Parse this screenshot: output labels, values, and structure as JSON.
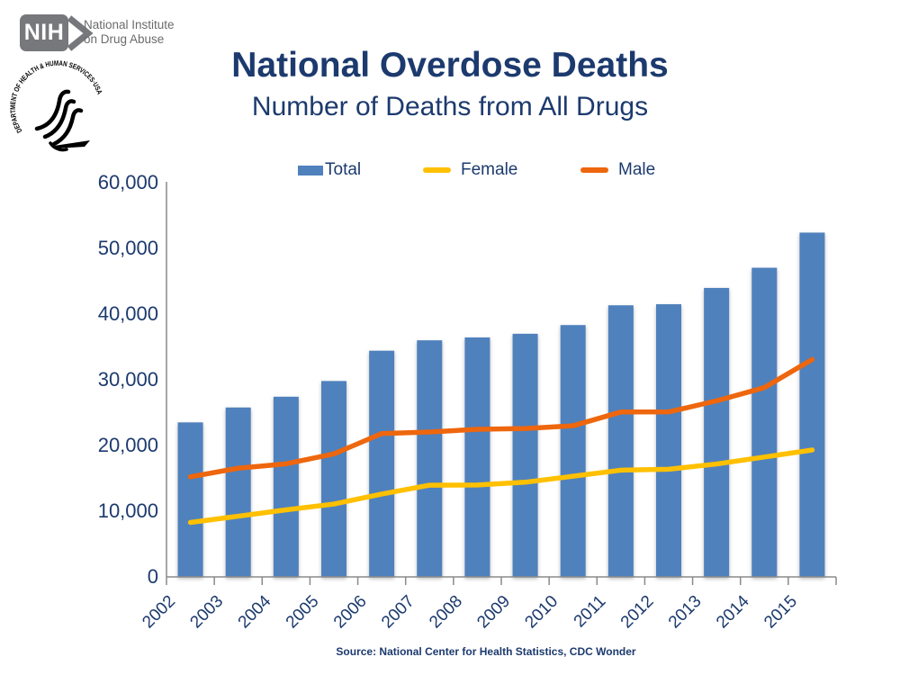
{
  "branding": {
    "nih_logo_text": "NIH",
    "institute_line1": "National Institute",
    "institute_line2": "on Drug Abuse",
    "hhs_seal_text": "DEPARTMENT OF HEALTH & HUMAN SERVICES·USA"
  },
  "title": "National Overdose Deaths",
  "subtitle": "Number of Deaths from All Drugs",
  "legend": [
    {
      "label": "Total",
      "swatch": "rect",
      "color": "#4F81BD"
    },
    {
      "label": "Female",
      "swatch": "line",
      "color": "#FFC000"
    },
    {
      "label": "Male",
      "swatch": "line",
      "color": "#EE660D"
    }
  ],
  "source": "Source: National Center for Health Statistics, CDC Wonder",
  "colors": {
    "navy_text": "#1C3A6E",
    "bar_blue": "#4F81BD",
    "female_yellow": "#FFC000",
    "male_orange": "#EE660D",
    "axis_gray": "#8A8A8A",
    "logo_gray": "#77787B"
  },
  "chart_data": {
    "type": "bar",
    "title": "National Overdose Deaths",
    "subtitle": "Number of Deaths from All Drugs",
    "categories": [
      "2002",
      "2003",
      "2004",
      "2005",
      "2006",
      "2007",
      "2008",
      "2009",
      "2010",
      "2011",
      "2012",
      "2013",
      "2014",
      "2015"
    ],
    "series": [
      {
        "name": "Total",
        "type": "bar",
        "color": "#4F81BD",
        "values": [
          23518,
          25785,
          27424,
          29813,
          34425,
          36010,
          36450,
          37004,
          38329,
          41340,
          41502,
          43982,
          47055,
          52404
        ]
      },
      {
        "name": "Female",
        "type": "line",
        "color": "#FFC000",
        "values": [
          8291,
          9238,
          10210,
          11089,
          12611,
          13961,
          13982,
          14411,
          15323,
          16244,
          16390,
          17183,
          18243,
          19313
        ]
      },
      {
        "name": "Male",
        "type": "line",
        "color": "#EE660D",
        "values": [
          15227,
          16547,
          17214,
          18724,
          21814,
          22049,
          22468,
          22593,
          23006,
          25096,
          25112,
          26799,
          28812,
          33091
        ]
      }
    ],
    "xlabel": "",
    "ylabel": "",
    "ylim": [
      0,
      60000
    ],
    "ytick_step": 10000,
    "ytick_labels": [
      "0",
      "10,000",
      "20,000",
      "30,000",
      "40,000",
      "50,000",
      "60,000"
    ],
    "grid": false,
    "legend_position": "top"
  }
}
